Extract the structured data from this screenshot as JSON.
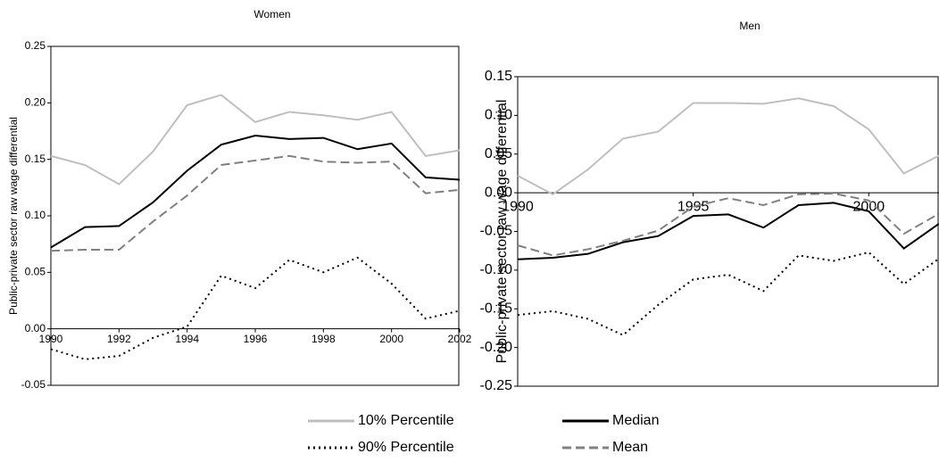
{
  "chart_data": [
    {
      "type": "line",
      "title": "Women",
      "y_label": "Public-private sector raw wage differential",
      "x": [
        1990,
        1991,
        1992,
        1993,
        1994,
        1995,
        1996,
        1997,
        1998,
        1999,
        2000,
        2001,
        2002
      ],
      "xlim": [
        1990,
        2002
      ],
      "xticks": [
        1990,
        1992,
        1994,
        1996,
        1998,
        2000,
        2002
      ],
      "ylim": [
        -0.05,
        0.25
      ],
      "yticks": [
        -0.05,
        {
          "value": 0,
          "label": "0.00"
        },
        0.05,
        {
          "value": 0.1,
          "label": "0.10"
        },
        0.15,
        {
          "value": 0.2,
          "label": "0.20"
        },
        0.25
      ],
      "series": [
        {
          "name": "10% Percentile",
          "color": "#bfbfbf",
          "dash": "solid",
          "values": [
            0.153,
            0.145,
            0.128,
            0.157,
            0.198,
            0.207,
            0.183,
            0.192,
            0.189,
            0.185,
            0.192,
            0.153,
            0.158
          ]
        },
        {
          "name": "Median",
          "color": "#000000",
          "dash": "solid",
          "values": [
            0.072,
            0.09,
            0.091,
            0.112,
            0.14,
            0.163,
            0.171,
            0.168,
            0.169,
            0.159,
            0.164,
            0.134,
            0.132
          ]
        },
        {
          "name": "90% Percentile",
          "color": "#000000",
          "dash": "dotted",
          "values": [
            -0.018,
            -0.027,
            -0.024,
            -0.008,
            0.002,
            0.047,
            0.036,
            0.061,
            0.05,
            0.063,
            0.04,
            0.009,
            0.016
          ]
        },
        {
          "name": "Mean",
          "color": "#808080",
          "dash": "dashed",
          "values": [
            0.069,
            0.07,
            0.07,
            0.095,
            0.118,
            0.145,
            0.149,
            0.153,
            0.148,
            0.147,
            0.148,
            0.12,
            0.123
          ]
        }
      ]
    },
    {
      "type": "line",
      "title": "Men",
      "y_label": "Public-private sector raw wage differential",
      "x": [
        1990,
        1991,
        1992,
        1993,
        1994,
        1995,
        1996,
        1997,
        1998,
        1999,
        2000,
        2001,
        2002
      ],
      "xlim": [
        1990,
        2002
      ],
      "xticks": [
        1990,
        1995,
        2000
      ],
      "ylim": [
        -0.25,
        0.15
      ],
      "yticks": [
        -0.25,
        {
          "value": -0.2,
          "label": "-0.20"
        },
        -0.15,
        {
          "value": -0.1,
          "label": "-0.10"
        },
        -0.05,
        {
          "value": 0,
          "label": "0.00"
        },
        0.05,
        {
          "value": 0.1,
          "label": "0.10"
        },
        0.15
      ],
      "series": [
        {
          "name": "10% Percentile",
          "color": "#bfbfbf",
          "dash": "solid",
          "values": [
            0.022,
            -0.002,
            0.03,
            0.07,
            0.079,
            0.116,
            0.116,
            0.115,
            0.122,
            0.112,
            0.082,
            0.025,
            0.048
          ]
        },
        {
          "name": "Median",
          "color": "#000000",
          "dash": "solid",
          "values": [
            -0.086,
            -0.084,
            -0.079,
            -0.064,
            -0.056,
            -0.03,
            -0.028,
            -0.045,
            -0.016,
            -0.013,
            -0.024,
            -0.072,
            -0.04
          ]
        },
        {
          "name": "90% Percentile",
          "color": "#000000",
          "dash": "dotted",
          "values": [
            -0.158,
            -0.153,
            -0.163,
            -0.184,
            -0.145,
            -0.112,
            -0.106,
            -0.127,
            -0.081,
            -0.088,
            -0.077,
            -0.118,
            -0.085
          ]
        },
        {
          "name": "Mean",
          "color": "#808080",
          "dash": "dashed",
          "values": [
            -0.068,
            -0.081,
            -0.073,
            -0.062,
            -0.049,
            -0.018,
            -0.007,
            -0.016,
            -0.002,
            -0.001,
            -0.01,
            -0.053,
            -0.027
          ]
        }
      ]
    }
  ]
}
